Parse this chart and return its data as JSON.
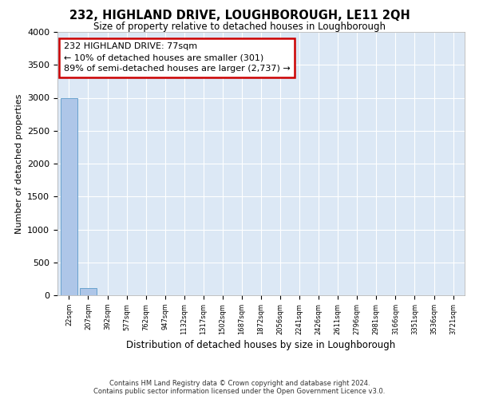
{
  "title": "232, HIGHLAND DRIVE, LOUGHBOROUGH, LE11 2QH",
  "subtitle": "Size of property relative to detached houses in Loughborough",
  "xlabel": "Distribution of detached houses by size in Loughborough",
  "ylabel": "Number of detached properties",
  "bar_labels": [
    "22sqm",
    "207sqm",
    "392sqm",
    "577sqm",
    "762sqm",
    "947sqm",
    "1132sqm",
    "1317sqm",
    "1502sqm",
    "1687sqm",
    "1872sqm",
    "2056sqm",
    "2241sqm",
    "2426sqm",
    "2611sqm",
    "2796sqm",
    "2981sqm",
    "3166sqm",
    "3351sqm",
    "3536sqm",
    "3721sqm"
  ],
  "bar_values": [
    2990,
    105,
    0,
    0,
    0,
    0,
    0,
    0,
    0,
    0,
    0,
    0,
    0,
    0,
    0,
    0,
    0,
    0,
    0,
    0,
    0
  ],
  "bar_color": "#aec6e8",
  "bar_edge_color": "#5a9ac8",
  "ylim": [
    0,
    4000
  ],
  "yticks": [
    0,
    500,
    1000,
    1500,
    2000,
    2500,
    3000,
    3500,
    4000
  ],
  "background_color": "#dce8f5",
  "grid_color": "#ffffff",
  "annotation_text": "232 HIGHLAND DRIVE: 77sqm\n← 10% of detached houses are smaller (301)\n89% of semi-detached houses are larger (2,737) →",
  "annotation_box_color": "#ffffff",
  "annotation_box_edge_color": "#cc0000",
  "footer_line1": "Contains HM Land Registry data © Crown copyright and database right 2024.",
  "footer_line2": "Contains public sector information licensed under the Open Government Licence v3.0.",
  "fig_width": 6.0,
  "fig_height": 5.0,
  "dpi": 100
}
